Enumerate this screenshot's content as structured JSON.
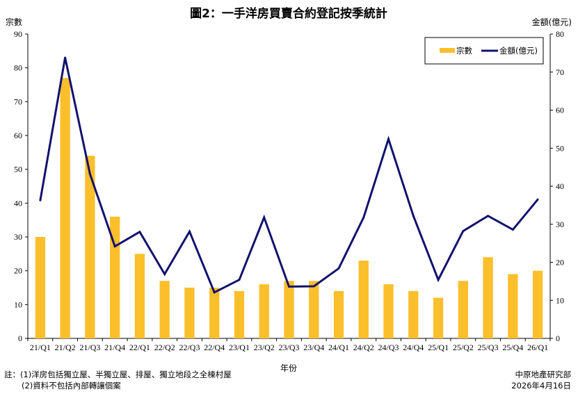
{
  "chart_data": {
    "type": "bar",
    "title": "圖2：一手洋房買賣合約登記按季統計",
    "y_left_label": "宗數",
    "y_right_label": "金額(億元)",
    "xlabel": "年份",
    "categories": [
      "21/Q1",
      "21/Q2",
      "21/Q3",
      "21/Q4",
      "22/Q1",
      "22/Q2",
      "22/Q3",
      "22/Q4",
      "23/Q1",
      "23/Q2",
      "23/Q3",
      "23/Q4",
      "24/Q1",
      "24/Q2",
      "24/Q3",
      "24/Q4",
      "25/Q1",
      "25/Q2",
      "25/Q3",
      "25/Q4",
      "26/Q1"
    ],
    "y_left_ticks": [
      "0",
      "10",
      "20",
      "30",
      "40",
      "50",
      "60",
      "70",
      "80",
      "90"
    ],
    "y_right_ticks": [
      "0",
      "10",
      "20",
      "30",
      "40",
      "50",
      "60",
      "70",
      "80"
    ],
    "ylim_left": [
      0,
      90
    ],
    "ylim_right": [
      0,
      80
    ],
    "series": [
      {
        "name": "宗數",
        "type": "bar",
        "axis": "left",
        "color": "#FBBF2C",
        "values": [
          30,
          77,
          54,
          36,
          25,
          17,
          15,
          15,
          14,
          16,
          17,
          17,
          14,
          23,
          16,
          14,
          12,
          17,
          24,
          19,
          20
        ]
      },
      {
        "name": "金額(億元)",
        "type": "line",
        "axis": "right",
        "color": "#11116E",
        "values": [
          36.3,
          73.8,
          43.2,
          24.2,
          28.0,
          16.9,
          28.1,
          12.1,
          15.4,
          31.8,
          13.6,
          13.7,
          18.4,
          31.8,
          52.4,
          32.2,
          15.4,
          28.2,
          32.2,
          28.6,
          36.5
        ]
      }
    ],
    "legend_position": "top-right",
    "grid": false
  },
  "notes": {
    "line1": "註：(1)洋房包括獨立屋、半獨立屋、排屋、獨立地段之全棟村屋",
    "line2": "(2)資料不包括內部轉讓個案"
  },
  "source": {
    "org": "中原地產研究部",
    "date": "2026年4月16日"
  }
}
